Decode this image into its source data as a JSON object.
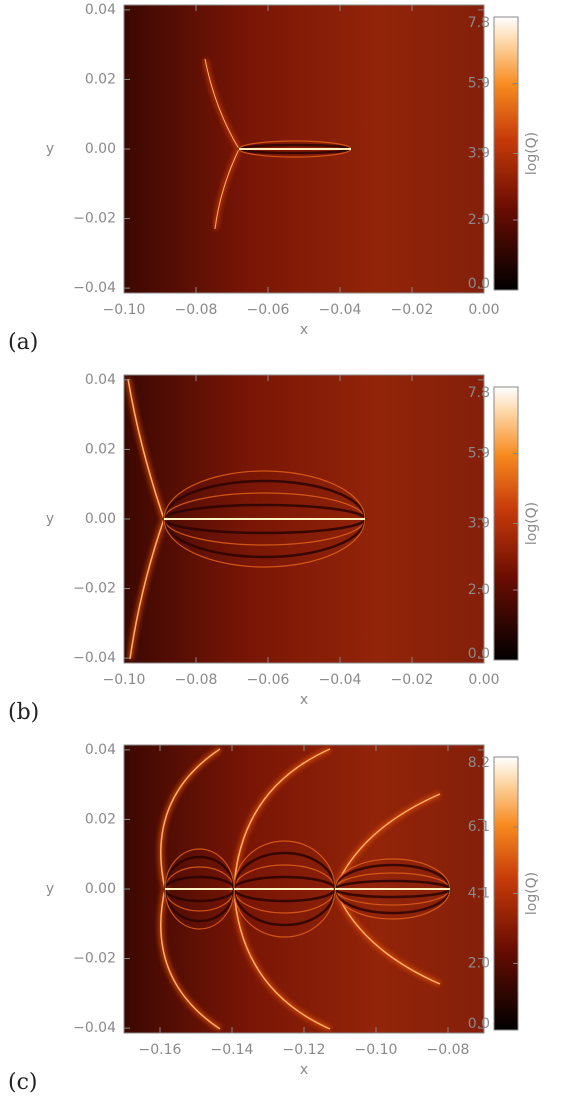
{
  "chart_data": [
    {
      "type": "heatmap",
      "label": "(a)",
      "xlabel": "x",
      "ylabel": "y",
      "xlim": [
        -0.1,
        0
      ],
      "ylim": [
        -0.0414,
        0.0414
      ],
      "xticks": [
        {
          "value": -0.1,
          "label": "−0.10"
        },
        {
          "value": -0.08,
          "label": "−0.08"
        },
        {
          "value": -0.06,
          "label": "−0.06"
        },
        {
          "value": -0.04,
          "label": "−0.04"
        },
        {
          "value": -0.02,
          "label": "−0.02"
        },
        {
          "value": 0,
          "label": "0.00"
        }
      ],
      "yticks": [
        {
          "value": -0.04,
          "label": "−0.04"
        },
        {
          "value": -0.02,
          "label": "−0.02"
        },
        {
          "value": 0,
          "label": "0.00"
        },
        0.02,
        0.04
      ],
      "colorbar": {
        "label": "log(Q)",
        "lim": [
          0,
          7.8
        ],
        "ticks": [
          {
            "value": 0,
            "label": "0.0"
          },
          {
            "value": 2,
            "label": "2.0"
          },
          3.9,
          5.9,
          7.8
        ]
      }
    },
    {
      "type": "heatmap",
      "label": "(b)",
      "xlabel": "x",
      "ylabel": "y",
      "xlim": [
        -0.1,
        0
      ],
      "ylim": [
        -0.0414,
        0.0414
      ],
      "xticks": [
        {
          "value": -0.1,
          "label": "−0.10"
        },
        {
          "value": -0.08,
          "label": "−0.08"
        },
        {
          "value": -0.06,
          "label": "−0.06"
        },
        {
          "value": -0.04,
          "label": "−0.04"
        },
        {
          "value": -0.02,
          "label": "−0.02"
        },
        {
          "value": 0,
          "label": "0.00"
        }
      ],
      "yticks": [
        {
          "value": -0.04,
          "label": "−0.04"
        },
        {
          "value": -0.02,
          "label": "−0.02"
        },
        {
          "value": 0,
          "label": "0.00"
        },
        0.02,
        0.04
      ],
      "colorbar": {
        "label": "log(Q)",
        "lim": [
          0,
          7.8
        ],
        "ticks": [
          {
            "value": 0,
            "label": "0.0"
          },
          {
            "value": 2,
            "label": "2.0"
          },
          3.9,
          5.9,
          7.8
        ]
      }
    },
    {
      "type": "heatmap",
      "label": "(c)",
      "xlabel": "x",
      "ylabel": "y",
      "xlim": [
        -0.17,
        -0.07
      ],
      "ylim": [
        -0.0414,
        0.0414
      ],
      "xticks": [
        {
          "value": -0.16,
          "label": "−0.16"
        },
        {
          "value": -0.14,
          "label": "−0.14"
        },
        {
          "value": -0.12,
          "label": "−0.12"
        },
        {
          "value": -0.1,
          "label": "−0.10"
        },
        {
          "value": -0.08,
          "label": "−0.08"
        }
      ],
      "yticks": [
        {
          "value": -0.04,
          "label": "−0.04"
        },
        {
          "value": -0.02,
          "label": "−0.02"
        },
        {
          "value": 0,
          "label": "0.00"
        },
        0.02,
        0.04
      ],
      "colorbar": {
        "label": "log(Q)",
        "lim": [
          0,
          8.2
        ],
        "ticks": [
          {
            "value": 0,
            "label": "0.0"
          },
          {
            "value": 2,
            "label": "2.0"
          },
          4.1,
          6.1,
          8.2
        ]
      }
    }
  ]
}
